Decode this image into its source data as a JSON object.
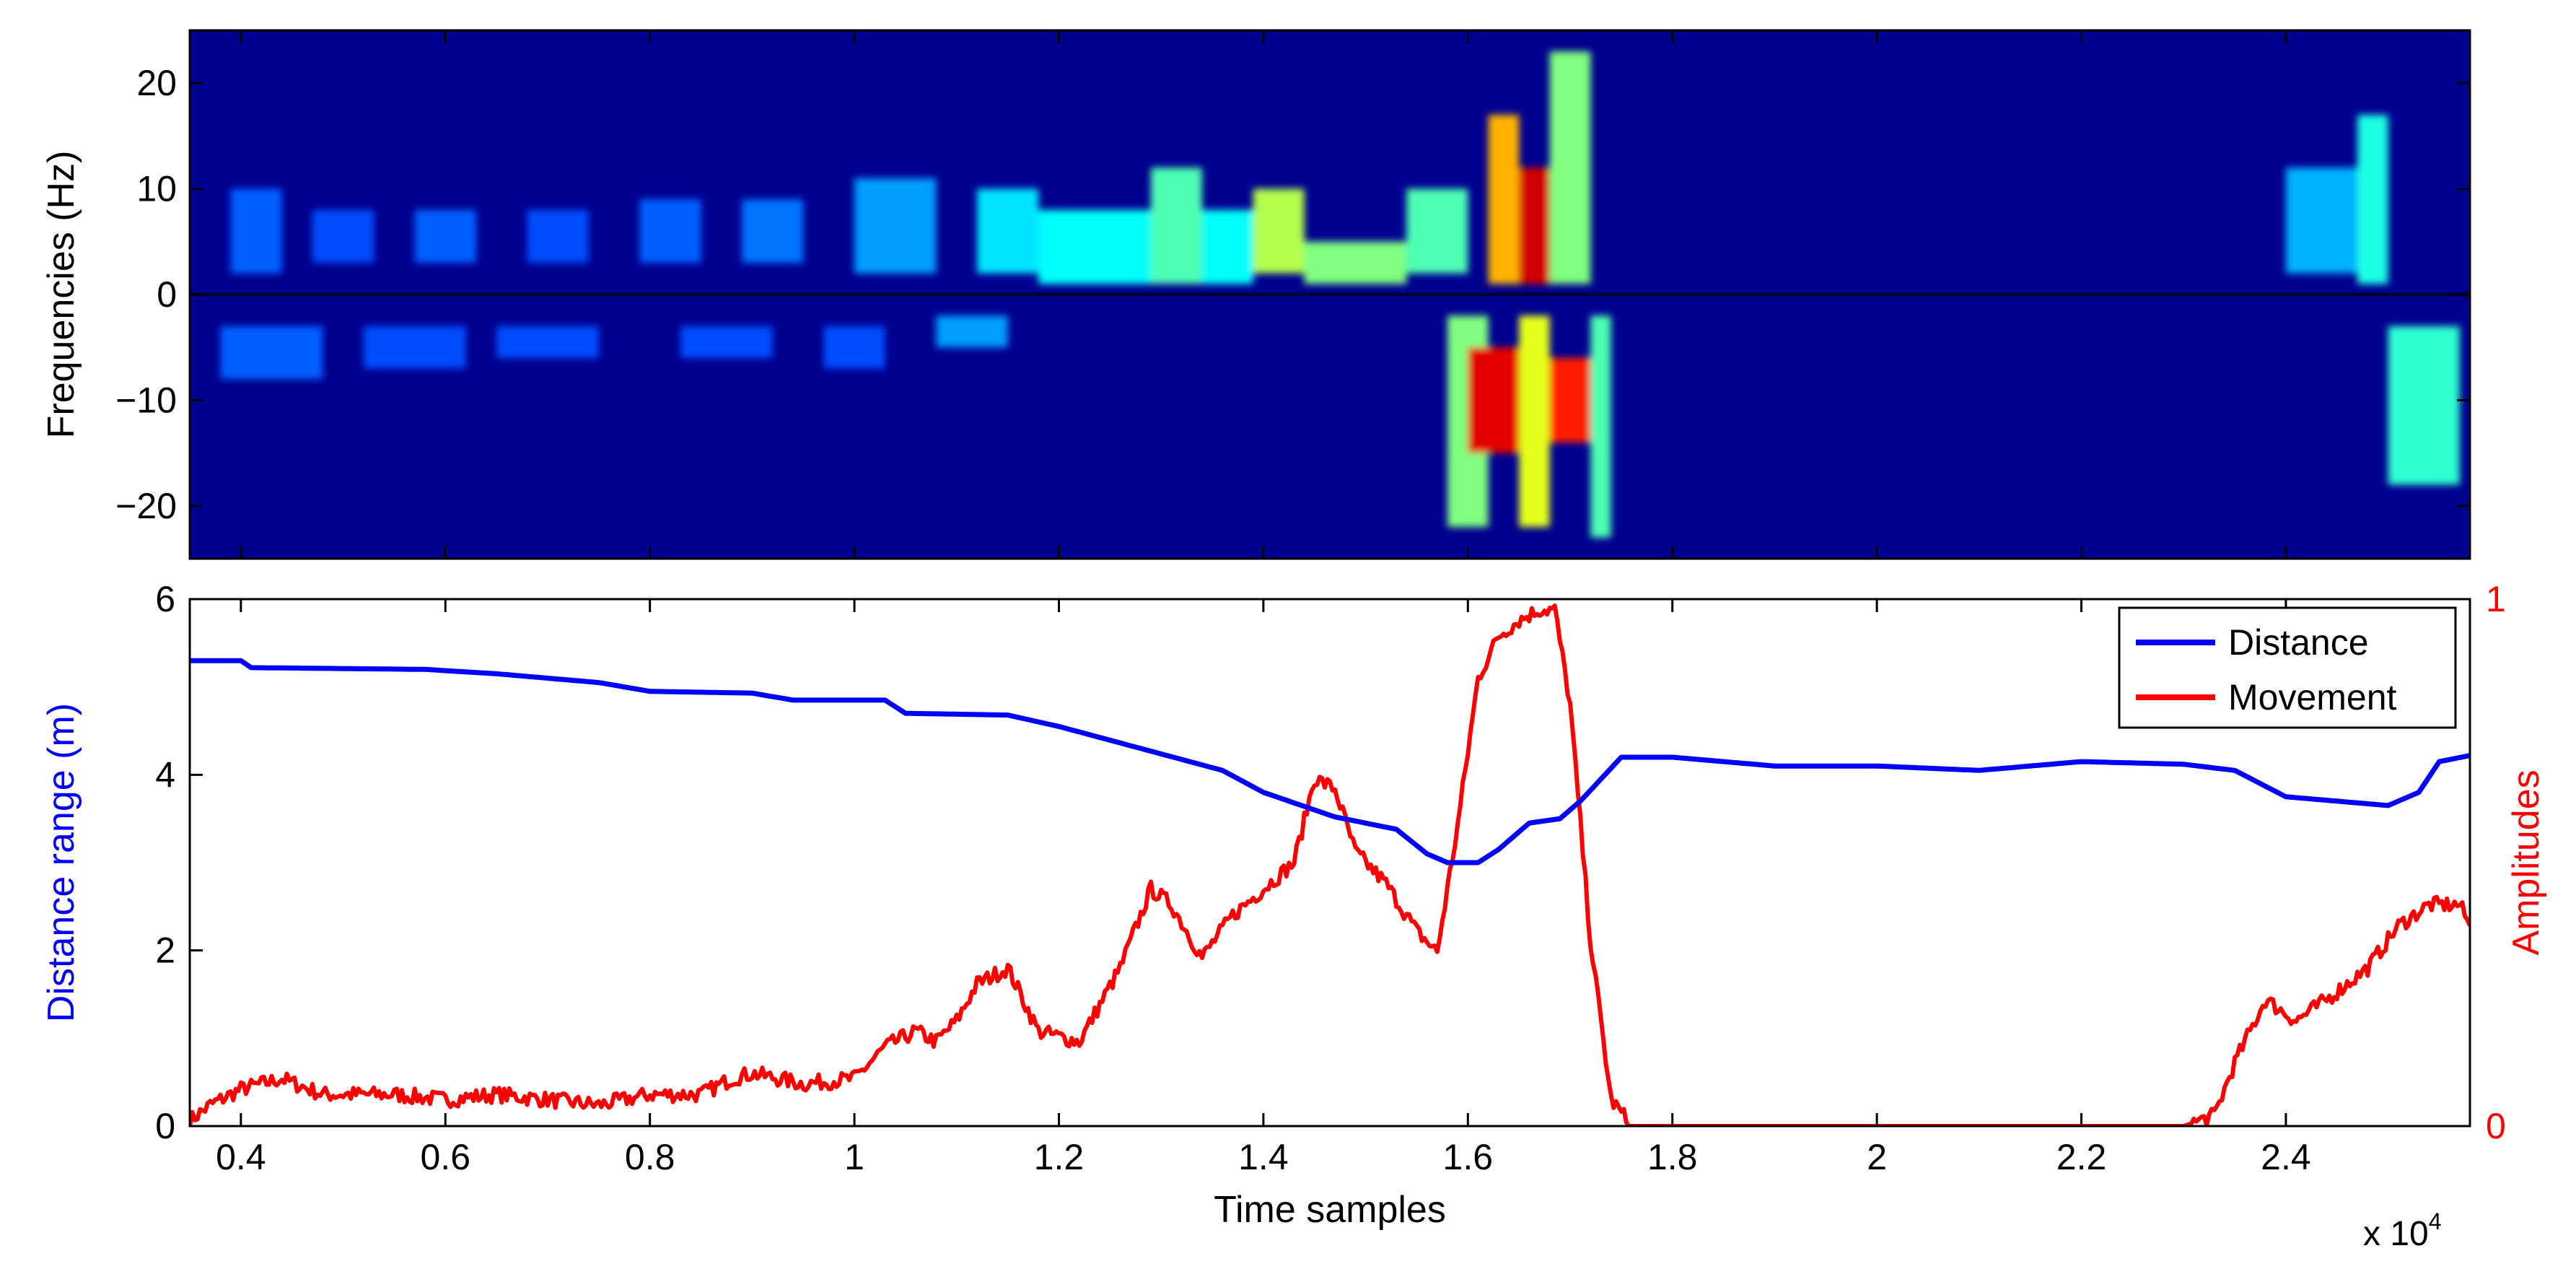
{
  "chart_data": [
    {
      "type": "heatmap",
      "title": "",
      "xlabel": "",
      "ylabel": "Frequencies (Hz)",
      "xlim": [
        3500,
        25800
      ],
      "ylim": [
        -25,
        25
      ],
      "y_ticks": [
        20,
        10,
        0,
        -10,
        -20
      ],
      "y_tick_labels": [
        "20",
        "10",
        "0",
        "−10",
        "−20"
      ],
      "colormap": "jet",
      "intensity_ranges_note": "estimated hot regions",
      "regions": [
        {
          "x": [
            3900,
            4400
          ],
          "f": [
            2,
            10
          ],
          "v": 0.22
        },
        {
          "x": [
            4700,
            5300
          ],
          "f": [
            3,
            8
          ],
          "v": 0.2
        },
        {
          "x": [
            5700,
            6300
          ],
          "f": [
            3,
            8
          ],
          "v": 0.22
        },
        {
          "x": [
            6800,
            7400
          ],
          "f": [
            3,
            8
          ],
          "v": 0.2
        },
        {
          "x": [
            7900,
            8500
          ],
          "f": [
            3,
            9
          ],
          "v": 0.22
        },
        {
          "x": [
            8900,
            9500
          ],
          "f": [
            3,
            9
          ],
          "v": 0.24
        },
        {
          "x": [
            10000,
            10800
          ],
          "f": [
            2,
            11
          ],
          "v": 0.28
        },
        {
          "x": [
            11200,
            11800
          ],
          "f": [
            2,
            10
          ],
          "v": 0.35
        },
        {
          "x": [
            11800,
            12900
          ],
          "f": [
            1,
            8
          ],
          "v": 0.38
        },
        {
          "x": [
            12900,
            13400
          ],
          "f": [
            1,
            12
          ],
          "v": 0.45
        },
        {
          "x": [
            13400,
            13900
          ],
          "f": [
            1,
            8
          ],
          "v": 0.38
        },
        {
          "x": [
            13900,
            14400
          ],
          "f": [
            2,
            10
          ],
          "v": 0.55
        },
        {
          "x": [
            14400,
            15400
          ],
          "f": [
            1,
            5
          ],
          "v": 0.5
        },
        {
          "x": [
            15400,
            16000
          ],
          "f": [
            2,
            10
          ],
          "v": 0.45
        },
        {
          "x": [
            16200,
            16500
          ],
          "f": [
            1,
            17
          ],
          "v": 0.7
        },
        {
          "x": [
            16500,
            16800
          ],
          "f": [
            1,
            12
          ],
          "v": 0.92
        },
        {
          "x": [
            16800,
            17200
          ],
          "f": [
            1,
            23
          ],
          "v": 0.5
        },
        {
          "x": [
            3800,
            4800
          ],
          "f": [
            -8,
            -3
          ],
          "v": 0.22
        },
        {
          "x": [
            5200,
            6200
          ],
          "f": [
            -7,
            -3
          ],
          "v": 0.2
        },
        {
          "x": [
            6500,
            7500
          ],
          "f": [
            -6,
            -3
          ],
          "v": 0.2
        },
        {
          "x": [
            8300,
            9200
          ],
          "f": [
            -6,
            -3
          ],
          "v": 0.2
        },
        {
          "x": [
            9700,
            10300
          ],
          "f": [
            -7,
            -3
          ],
          "v": 0.2
        },
        {
          "x": [
            10800,
            11500
          ],
          "f": [
            -5,
            -2
          ],
          "v": 0.28
        },
        {
          "x": [
            15800,
            16200
          ],
          "f": [
            -22,
            -2
          ],
          "v": 0.5
        },
        {
          "x": [
            16000,
            16500
          ],
          "f": [
            -15,
            -5
          ],
          "v": 0.9
        },
        {
          "x": [
            16500,
            16800
          ],
          "f": [
            -22,
            -2
          ],
          "v": 0.6
        },
        {
          "x": [
            16800,
            17200
          ],
          "f": [
            -14,
            -6
          ],
          "v": 0.85
        },
        {
          "x": [
            17200,
            17400
          ],
          "f": [
            -23,
            -2
          ],
          "v": 0.45
        },
        {
          "x": [
            24000,
            24700
          ],
          "f": [
            2,
            12
          ],
          "v": 0.3
        },
        {
          "x": [
            24700,
            25000
          ],
          "f": [
            1,
            17
          ],
          "v": 0.4
        },
        {
          "x": [
            25000,
            25700
          ],
          "f": [
            -18,
            -3
          ],
          "v": 0.42
        }
      ]
    },
    {
      "type": "line",
      "title": "",
      "xlabel": "Time samples",
      "ylabel": "Distance range (m)",
      "ylabel_right": "Amplitudes",
      "xlim": [
        3500,
        25800
      ],
      "ylim": [
        0,
        6
      ],
      "ylim_right": [
        0,
        1
      ],
      "x_ticks": [
        4000,
        6000,
        8000,
        10000,
        12000,
        14000,
        16000,
        18000,
        20000,
        22000,
        24000
      ],
      "x_tick_labels": [
        "0.4",
        "0.6",
        "0.8",
        "1",
        "1.2",
        "1.4",
        "1.6",
        "1.8",
        "2",
        "2.2",
        "2.4"
      ],
      "x_multiplier": "x 10",
      "x_multiplier_exp": "4",
      "y_ticks": [
        0,
        2,
        4,
        6
      ],
      "y_tick_labels": [
        "0",
        "2",
        "4",
        "6"
      ],
      "y_ticks_right": [
        0,
        1
      ],
      "y_tick_labels_right": [
        "0",
        "1"
      ],
      "legend": {
        "placement": "top-right",
        "entries": [
          "Distance",
          "Movement"
        ]
      },
      "series": [
        {
          "name": "Distance",
          "color": "#0000ff",
          "axis": "left",
          "x": [
            3500,
            4000,
            4100,
            5800,
            6500,
            7500,
            8000,
            9000,
            9400,
            10300,
            10500,
            11500,
            12000,
            12800,
            13600,
            14000,
            14700,
            15300,
            15600,
            15800,
            16100,
            16300,
            16600,
            16900,
            17100,
            17300,
            17500,
            18000,
            19000,
            20000,
            21000,
            22000,
            23000,
            23500,
            24000,
            24500,
            25000,
            25300,
            25500,
            25800
          ],
          "values": [
            5.3,
            5.3,
            5.22,
            5.2,
            5.15,
            5.05,
            4.95,
            4.93,
            4.85,
            4.85,
            4.7,
            4.68,
            4.55,
            4.3,
            4.05,
            3.8,
            3.52,
            3.38,
            3.1,
            3.0,
            3.0,
            3.15,
            3.45,
            3.5,
            3.7,
            3.95,
            4.2,
            4.2,
            4.1,
            4.1,
            4.05,
            4.15,
            4.12,
            4.05,
            3.75,
            3.7,
            3.65,
            3.8,
            4.15,
            4.22
          ]
        },
        {
          "name": "Movement",
          "color": "#ff0000",
          "axis": "right",
          "x": [
            3500,
            3700,
            4000,
            4400,
            4800,
            5000,
            5500,
            6000,
            6500,
            7000,
            7500,
            8000,
            8500,
            8800,
            9000,
            9500,
            10000,
            10300,
            10600,
            10800,
            11000,
            11200,
            11500,
            11800,
            12200,
            12600,
            12900,
            13100,
            13400,
            13700,
            14000,
            14300,
            14500,
            14700,
            14900,
            15200,
            15500,
            15700,
            15900,
            16100,
            16300,
            16500,
            16700,
            16850,
            17000,
            17200,
            17400,
            17600,
            18000,
            19000,
            20000,
            21000,
            22000,
            23000,
            23300,
            23500,
            23800,
            24100,
            24400,
            24800,
            25100,
            25400,
            25700,
            25800
          ],
          "values": [
            0.01,
            0.04,
            0.07,
            0.09,
            0.06,
            0.06,
            0.06,
            0.05,
            0.06,
            0.05,
            0.04,
            0.06,
            0.06,
            0.09,
            0.1,
            0.08,
            0.09,
            0.15,
            0.18,
            0.16,
            0.2,
            0.27,
            0.3,
            0.18,
            0.16,
            0.3,
            0.45,
            0.42,
            0.32,
            0.4,
            0.45,
            0.5,
            0.66,
            0.64,
            0.52,
            0.46,
            0.37,
            0.33,
            0.57,
            0.85,
            0.93,
            0.96,
            0.98,
            0.98,
            0.8,
            0.35,
            0.05,
            0.0,
            0.0,
            0.0,
            0.0,
            0.0,
            0.0,
            0.0,
            0.02,
            0.12,
            0.24,
            0.2,
            0.24,
            0.3,
            0.38,
            0.42,
            0.42,
            0.38
          ]
        }
      ]
    }
  ]
}
